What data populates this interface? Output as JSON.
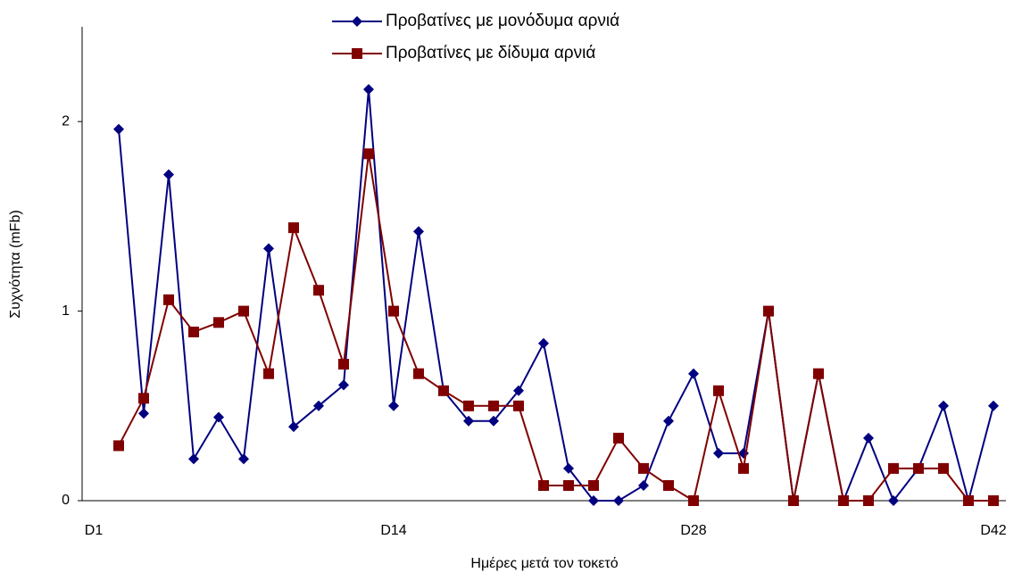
{
  "chart_data": {
    "type": "line",
    "x_label": "Ημέρες μετά τον τοκετό",
    "y_label": "Συχνότητα (mFb)",
    "categories": [
      "D1",
      null,
      null,
      null,
      null,
      null,
      null,
      null,
      null,
      null,
      null,
      null,
      "D14",
      null,
      null,
      null,
      null,
      null,
      null,
      null,
      null,
      null,
      null,
      null,
      "D28",
      null,
      null,
      null,
      null,
      null,
      null,
      null,
      null,
      null,
      null,
      null,
      "D42"
    ],
    "series": [
      {
        "name": "Προβατίνες με μονόδυμα αρνιά",
        "color": "#000080",
        "marker": "diamond",
        "values": [
          null,
          1.96,
          0.46,
          1.72,
          0.22,
          0.44,
          0.22,
          1.33,
          0.39,
          0.5,
          0.61,
          2.17,
          0.5,
          1.42,
          0.58,
          0.42,
          0.42,
          0.58,
          0.83,
          0.17,
          0,
          0,
          0.08,
          0.42,
          0.67,
          0.25,
          0.25,
          1,
          0,
          0.67,
          0,
          0.33,
          0,
          0.17,
          0.5,
          0,
          0.5
        ]
      },
      {
        "name": "Προβατίνες με δίδυμα αρνιά",
        "color": "#800000",
        "marker": "square",
        "values": [
          null,
          0.29,
          0.54,
          1.06,
          0.89,
          0.94,
          1,
          0.67,
          1.44,
          1.11,
          0.72,
          1.83,
          1,
          0.67,
          0.58,
          0.5,
          0.5,
          0.5,
          0.08,
          0.08,
          0.08,
          0.33,
          0.17,
          0.08,
          0,
          0.58,
          0.17,
          1,
          0,
          0.67,
          0,
          0,
          0.17,
          0.17,
          0.17,
          0,
          0
        ]
      }
    ],
    "ylim": [
      0,
      2.5
    ],
    "yticks": [
      0,
      1,
      2
    ],
    "grid": false,
    "legend": "top"
  }
}
